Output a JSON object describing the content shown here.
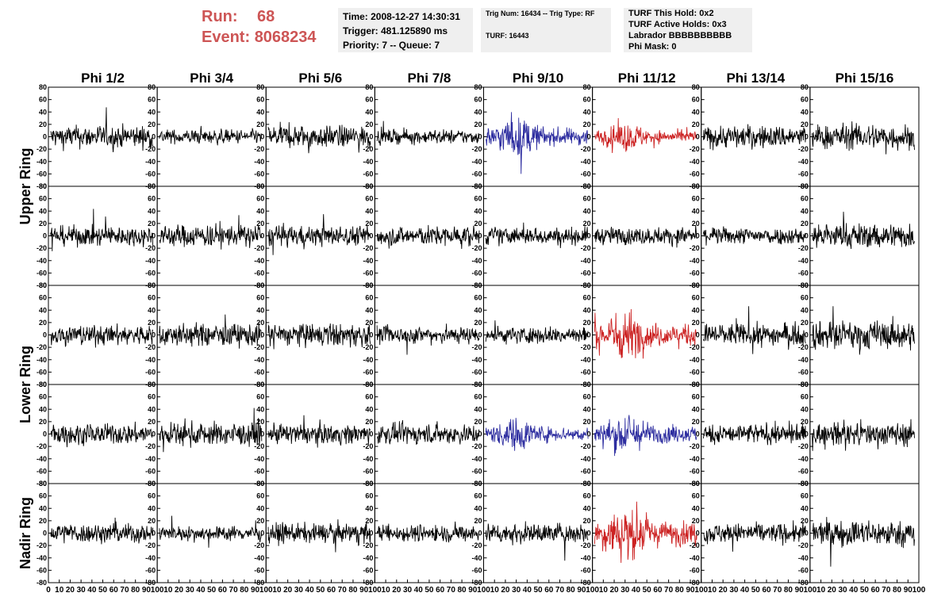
{
  "header": {
    "run_label": "Run:",
    "run_value": "68",
    "event_label": "Event:",
    "event_value": "8068234",
    "time_line": "Time: 2008-12-27 14:30:31",
    "trigger_line": "Trigger: 481.125890 ms",
    "priority_line": "Priority: 7 -- Queue: 7",
    "trig_num_line": "Trig Num: 16434 -- Trig Type: RF",
    "turf_line": "TURF: 16443",
    "turf_this_hold": "TURF This Hold: 0x2",
    "turf_active_holds": "TURF Active Holds: 0x3",
    "labrador": "Labrador BBBBBBBBBB",
    "phi_mask": "Phi Mask: 0"
  },
  "colors": {
    "normal": "#000000",
    "triggered_blue": "#2e2ea0",
    "triggered_red": "#cc2222",
    "header_red": "#cd5555",
    "box_bg": "#efefef"
  },
  "chart_data": {
    "type": "line",
    "columns": [
      "Phi 1/2",
      "Phi 3/4",
      "Phi 5/6",
      "Phi 7/8",
      "Phi 9/10",
      "Phi 11/12",
      "Phi 13/14",
      "Phi 15/16"
    ],
    "ring_labels": [
      {
        "text": "Upper Ring",
        "rows": [
          0,
          1
        ]
      },
      {
        "text": "Lower Ring",
        "rows": [
          2,
          3
        ]
      },
      {
        "text": "Nadir Ring",
        "rows": [
          4
        ]
      }
    ],
    "y_ticks": [
      -80,
      -60,
      -40,
      -20,
      0,
      20,
      40,
      60,
      80
    ],
    "x_ticks": [
      0,
      10,
      20,
      30,
      40,
      50,
      60,
      70,
      80,
      90,
      100
    ],
    "ylim": [
      -80,
      80
    ],
    "xlim": [
      0,
      100
    ],
    "n_samples": 256,
    "row_amplitudes": [
      [
        16,
        10,
        16,
        10,
        20,
        14,
        16,
        18
      ],
      [
        14,
        16,
        14,
        14,
        12,
        12,
        12,
        18
      ],
      [
        14,
        16,
        16,
        12,
        12,
        24,
        16,
        20
      ],
      [
        14,
        16,
        14,
        14,
        16,
        20,
        14,
        16
      ],
      [
        14,
        10,
        14,
        12,
        14,
        28,
        14,
        18
      ]
    ],
    "row_colors": [
      [
        "normal",
        "normal",
        "normal",
        "normal",
        "triggered_blue",
        "triggered_red",
        "normal",
        "normal"
      ],
      [
        "normal",
        "normal",
        "normal",
        "normal",
        "normal",
        "normal",
        "normal",
        "normal"
      ],
      [
        "normal",
        "normal",
        "normal",
        "normal",
        "normal",
        "triggered_red",
        "normal",
        "normal"
      ],
      [
        "normal",
        "normal",
        "normal",
        "normal",
        "triggered_blue",
        "triggered_blue",
        "normal",
        "normal"
      ],
      [
        "normal",
        "normal",
        "normal",
        "normal",
        "normal",
        "triggered_red",
        "normal",
        "normal"
      ]
    ]
  }
}
